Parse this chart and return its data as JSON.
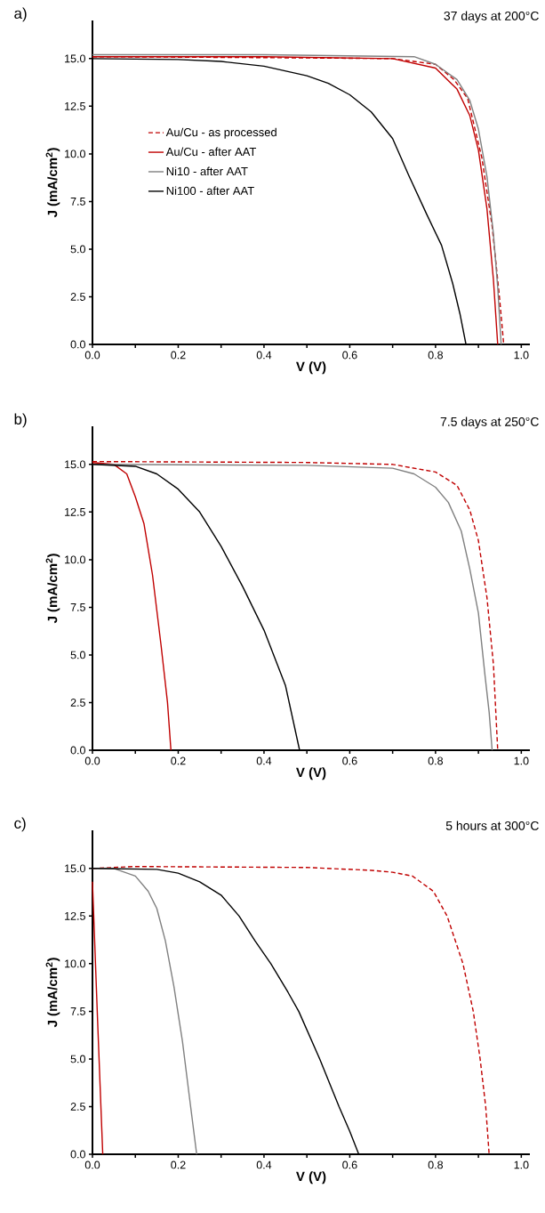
{
  "chart_data": [
    {
      "type": "line",
      "title": "a)",
      "subtitle": "37 days at 200°C",
      "xlabel": "V (V)",
      "ylabel": "J (mA/cm$^{2}$)",
      "xlim": [
        0,
        1.02
      ],
      "ylim": [
        0,
        17
      ],
      "xticks": [
        {
          "value": 0,
          "label": "0.0"
        },
        {
          "value": 0.1,
          "label": null
        },
        {
          "value": 0.2,
          "label": "0.2"
        },
        {
          "value": 0.3,
          "label": null
        },
        {
          "value": 0.4,
          "label": "0.4"
        },
        {
          "value": 0.5,
          "label": null
        },
        {
          "value": 0.6,
          "label": "0.6"
        },
        {
          "value": 0.7,
          "label": null
        },
        {
          "value": 0.8,
          "label": "0.8"
        },
        {
          "value": 0.9,
          "label": null
        },
        {
          "value": 1.0,
          "label": "1.0"
        }
      ],
      "yticks": [
        {
          "value": 0,
          "label": "0.0"
        },
        2.5,
        {
          "value": 5,
          "label": "5.0"
        },
        7.5,
        {
          "value": 10,
          "label": "10.0"
        },
        12.5,
        {
          "value": 15,
          "label": "15.0"
        }
      ],
      "legend": "left",
      "series": [
        {
          "name": "Au/Cu - as processed",
          "color": "#c00000",
          "line_style": "dashed",
          "x": [
            0,
            0.4,
            0.7,
            0.8,
            0.843,
            0.875,
            0.908,
            0.932,
            0.949,
            0.959
          ],
          "values": [
            15.1,
            15.05,
            15.0,
            14.7,
            13.9,
            12.9,
            9.8,
            6.2,
            2.5,
            0
          ]
        },
        {
          "name": "Au/Cu - after AAT",
          "color": "#c00000",
          "line_style": "solid",
          "x": [
            0,
            0.4,
            0.7,
            0.8,
            0.85,
            0.88,
            0.9,
            0.92,
            0.935,
            0.945
          ],
          "values": [
            15.1,
            15.1,
            15.0,
            14.5,
            13.4,
            12.0,
            10.2,
            7.1,
            3.4,
            0
          ]
        },
        {
          "name": "Ni10 - after AAT",
          "color": "#808080",
          "line_style": "solid",
          "x": [
            0,
            0.4,
            0.75,
            0.8,
            0.85,
            0.88,
            0.9,
            0.92,
            0.935,
            0.945,
            0.953
          ],
          "values": [
            15.2,
            15.2,
            15.1,
            14.7,
            13.9,
            12.8,
            11.3,
            8.8,
            5.8,
            3.0,
            0
          ]
        },
        {
          "name": "Ni100 - after AAT",
          "color": "#000000",
          "line_style": "solid",
          "x": [
            0,
            0.2,
            0.3,
            0.4,
            0.5,
            0.55,
            0.6,
            0.65,
            0.7,
            0.737,
            0.78,
            0.814,
            0.84,
            0.857,
            0.871
          ],
          "values": [
            15.0,
            14.95,
            14.85,
            14.6,
            14.1,
            13.7,
            13.1,
            12.2,
            10.8,
            8.9,
            6.8,
            5.2,
            3.2,
            1.6,
            0
          ]
        }
      ]
    },
    {
      "type": "line",
      "title": "b)",
      "subtitle": "7.5 days at 250°C",
      "xlabel": "V (V)",
      "ylabel": "J (mA/cm$^{2}$)",
      "xlim": [
        0,
        1.02
      ],
      "ylim": [
        0,
        17
      ],
      "xticks": [
        {
          "value": 0,
          "label": "0.0"
        },
        {
          "value": 0.1,
          "label": null
        },
        {
          "value": 0.2,
          "label": "0.2"
        },
        {
          "value": 0.3,
          "label": null
        },
        {
          "value": 0.4,
          "label": "0.4"
        },
        {
          "value": 0.5,
          "label": null
        },
        {
          "value": 0.6,
          "label": "0.6"
        },
        {
          "value": 0.7,
          "label": null
        },
        {
          "value": 0.8,
          "label": "0.8"
        },
        {
          "value": 0.9,
          "label": null
        },
        {
          "value": 1.0,
          "label": "1.0"
        }
      ],
      "yticks": [
        {
          "value": 0,
          "label": "0.0"
        },
        2.5,
        {
          "value": 5,
          "label": "5.0"
        },
        7.5,
        {
          "value": 10,
          "label": "10.0"
        },
        12.5,
        {
          "value": 15,
          "label": "15.0"
        }
      ],
      "series": [
        {
          "color": "#c00000",
          "line_style": "dashed",
          "x": [
            0,
            0.5,
            0.7,
            0.8,
            0.85,
            0.88,
            0.9,
            0.92,
            0.935,
            0.945
          ],
          "values": [
            15.15,
            15.1,
            15.0,
            14.6,
            13.9,
            12.6,
            11.0,
            8.0,
            4.5,
            0
          ]
        },
        {
          "color": "#c00000",
          "line_style": "solid",
          "x": [
            0,
            0.05,
            0.08,
            0.1,
            0.12,
            0.14,
            0.16,
            0.175,
            0.183
          ],
          "values": [
            15.1,
            15.0,
            14.5,
            13.3,
            11.9,
            9.2,
            5.5,
            2.5,
            0
          ]
        },
        {
          "color": "#808080",
          "line_style": "solid",
          "x": [
            0,
            0.5,
            0.7,
            0.75,
            0.8,
            0.83,
            0.86,
            0.88,
            0.9,
            0.915,
            0.925,
            0.932
          ],
          "values": [
            15.0,
            14.95,
            14.8,
            14.5,
            13.8,
            13.0,
            11.5,
            9.5,
            7.2,
            4.0,
            2.0,
            0
          ]
        },
        {
          "color": "#000000",
          "line_style": "solid",
          "x": [
            0,
            0.1,
            0.15,
            0.2,
            0.25,
            0.3,
            0.35,
            0.4,
            0.45,
            0.483
          ],
          "values": [
            15.0,
            14.9,
            14.5,
            13.7,
            12.5,
            10.7,
            8.6,
            6.3,
            3.4,
            0
          ]
        }
      ]
    },
    {
      "type": "line",
      "title": "c)",
      "subtitle": "5 hours at 300°C",
      "xlabel": "V (V)",
      "ylabel": "J (mA/cm$^{2}$)",
      "xlim": [
        0,
        1.02
      ],
      "ylim": [
        0,
        17
      ],
      "xticks": [
        {
          "value": 0,
          "label": "0.0"
        },
        {
          "value": 0.1,
          "label": null
        },
        {
          "value": 0.2,
          "label": "0.2"
        },
        {
          "value": 0.3,
          "label": null
        },
        {
          "value": 0.4,
          "label": "0.4"
        },
        {
          "value": 0.5,
          "label": null
        },
        {
          "value": 0.6,
          "label": "0.6"
        },
        {
          "value": 0.7,
          "label": null
        },
        {
          "value": 0.8,
          "label": "0.8"
        },
        {
          "value": 0.9,
          "label": null
        },
        {
          "value": 1.0,
          "label": "1.0"
        }
      ],
      "yticks": [
        {
          "value": 0,
          "label": "0.0"
        },
        2.5,
        {
          "value": 5,
          "label": "5.0"
        },
        7.5,
        {
          "value": 10,
          "label": "10.0"
        },
        12.5,
        {
          "value": 15,
          "label": "15.0"
        }
      ],
      "series": [
        {
          "color": "#c00000",
          "line_style": "dashed",
          "x": [
            0,
            0.1,
            0.5,
            0.65,
            0.7,
            0.746,
            0.795,
            0.827,
            0.864,
            0.888,
            0.904,
            0.917,
            0.925
          ],
          "values": [
            15.0,
            15.1,
            15.05,
            14.9,
            14.8,
            14.6,
            13.8,
            12.5,
            10.0,
            7.5,
            5.0,
            2.5,
            0
          ]
        },
        {
          "color": "#c00000",
          "line_style": "solid",
          "x": [
            0,
            0.012,
            0.024
          ],
          "values": [
            14.3,
            7.0,
            0
          ]
        },
        {
          "color": "#808080",
          "line_style": "solid",
          "x": [
            0,
            0.05,
            0.1,
            0.13,
            0.15,
            0.17,
            0.19,
            0.21,
            0.225,
            0.243
          ],
          "values": [
            15.0,
            15.0,
            14.6,
            13.8,
            12.9,
            11.2,
            8.8,
            5.9,
            3.2,
            0
          ]
        },
        {
          "color": "#000000",
          "line_style": "solid",
          "x": [
            0,
            0.15,
            0.2,
            0.25,
            0.3,
            0.342,
            0.379,
            0.416,
            0.456,
            0.481,
            0.53,
            0.575,
            0.6,
            0.621
          ],
          "values": [
            15.0,
            14.95,
            14.75,
            14.3,
            13.6,
            12.5,
            11.2,
            10.0,
            8.5,
            7.5,
            5.0,
            2.5,
            1.2,
            0
          ]
        }
      ]
    }
  ]
}
